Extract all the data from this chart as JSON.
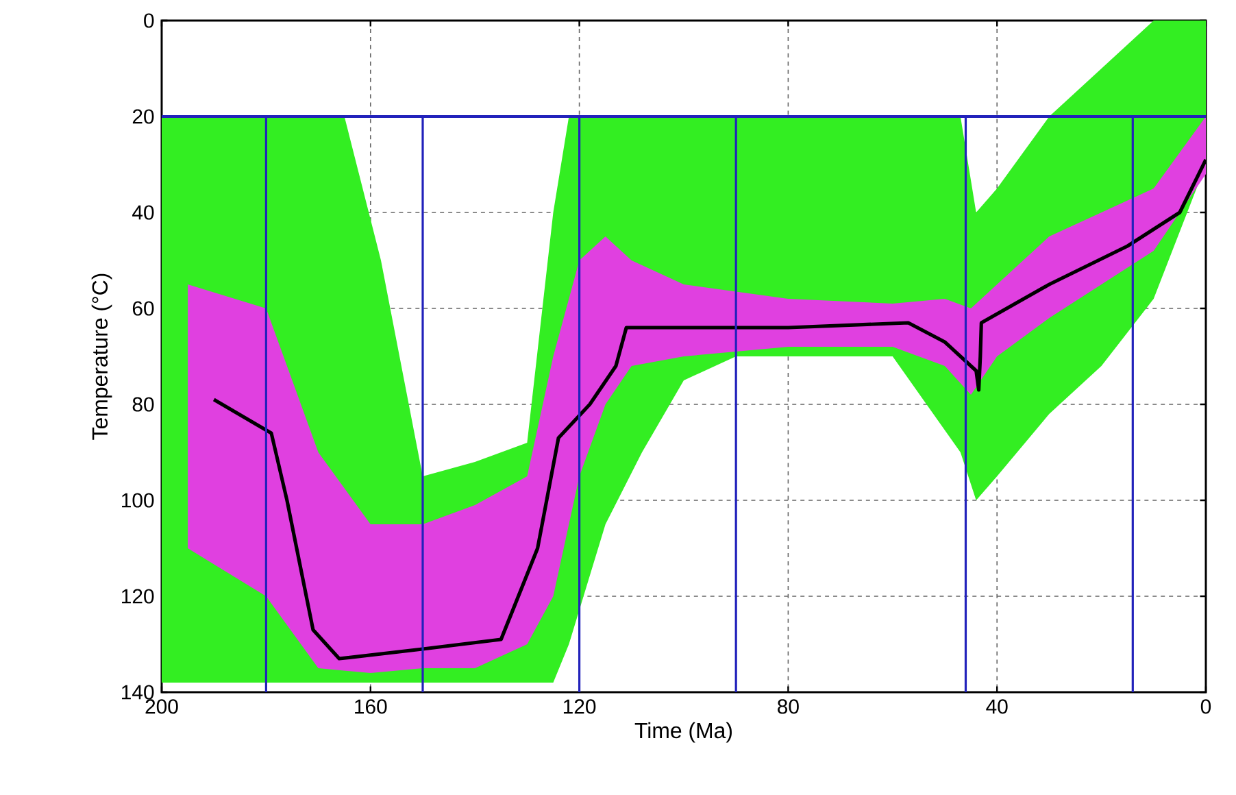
{
  "chart_data": {
    "type": "line",
    "xlabel": "Time (Ma)",
    "ylabel": "Temperature (°C)",
    "xlim": [
      200,
      0
    ],
    "ylim": [
      140,
      0
    ],
    "xticks": [
      200,
      160,
      120,
      80,
      40,
      0
    ],
    "yticks": [
      0,
      20,
      40,
      60,
      80,
      100,
      120,
      140
    ],
    "grid": true,
    "series": [
      {
        "color": "#33ee22",
        "x": [
          200,
          180,
          165,
          158,
          150,
          140,
          130,
          125,
          122,
          115,
          108,
          100,
          90,
          60,
          47,
          44,
          40,
          30,
          20,
          10,
          0
        ],
        "values": [
          null,
          null,
          null,
          null,
          null,
          null,
          null,
          null,
          null,
          null,
          null,
          null,
          null,
          null,
          null,
          null,
          null,
          null,
          null,
          null,
          null
        ],
        "lower": [
          20,
          20,
          20,
          50,
          95,
          92,
          88,
          40,
          20,
          20,
          20,
          20,
          20,
          20,
          20,
          40,
          35,
          20,
          10,
          0,
          0
        ],
        "upper": [
          138,
          138,
          138,
          138,
          138,
          138,
          138,
          138,
          130,
          105,
          90,
          75,
          70,
          70,
          90,
          100,
          95,
          82,
          72,
          58,
          30
        ]
      },
      {
        "color": "#e040e0",
        "x": [
          195,
          180,
          170,
          160,
          150,
          140,
          130,
          125,
          120,
          115,
          110,
          100,
          80,
          60,
          50,
          45,
          40,
          30,
          20,
          10,
          0
        ],
        "values": [
          null,
          null,
          null,
          null,
          null,
          null,
          null,
          null,
          null,
          null,
          null,
          null,
          null,
          null,
          null,
          null,
          null,
          null,
          null,
          null,
          null
        ],
        "lower": [
          55,
          60,
          90,
          105,
          105,
          101,
          95,
          70,
          50,
          45,
          50,
          55,
          58,
          59,
          58,
          60,
          55,
          45,
          40,
          35,
          20
        ],
        "upper": [
          110,
          120,
          135,
          136,
          135,
          135,
          130,
          120,
          95,
          80,
          72,
          70,
          68,
          68,
          72,
          78,
          70,
          62,
          55,
          48,
          32
        ]
      },
      {
        "color": "#000000",
        "x": [
          190,
          179,
          176,
          171,
          166,
          150,
          135,
          128,
          124,
          118,
          113,
          111,
          100,
          80,
          57,
          50,
          46,
          44,
          43.5,
          43.2,
          43,
          30,
          15,
          5,
          0
        ],
        "values": [
          79,
          86,
          100,
          127,
          133,
          131,
          129,
          110,
          87,
          80,
          72,
          64,
          64,
          64,
          63,
          67,
          71,
          73,
          77,
          70,
          63,
          55,
          47,
          40,
          29
        ]
      }
    ],
    "ref_lines": [
      {
        "axis": "y",
        "value": 20,
        "color": "#2222bb"
      },
      {
        "axis": "x",
        "value": 180,
        "color": "#2222bb"
      },
      {
        "axis": "x",
        "value": 150,
        "color": "#2222bb"
      },
      {
        "axis": "x",
        "value": 120,
        "color": "#2222bb"
      },
      {
        "axis": "x",
        "value": 90,
        "color": "#2222bb"
      },
      {
        "axis": "x",
        "value": 46,
        "color": "#2222bb"
      },
      {
        "axis": "x",
        "value": 14,
        "color": "#2222bb"
      }
    ]
  }
}
